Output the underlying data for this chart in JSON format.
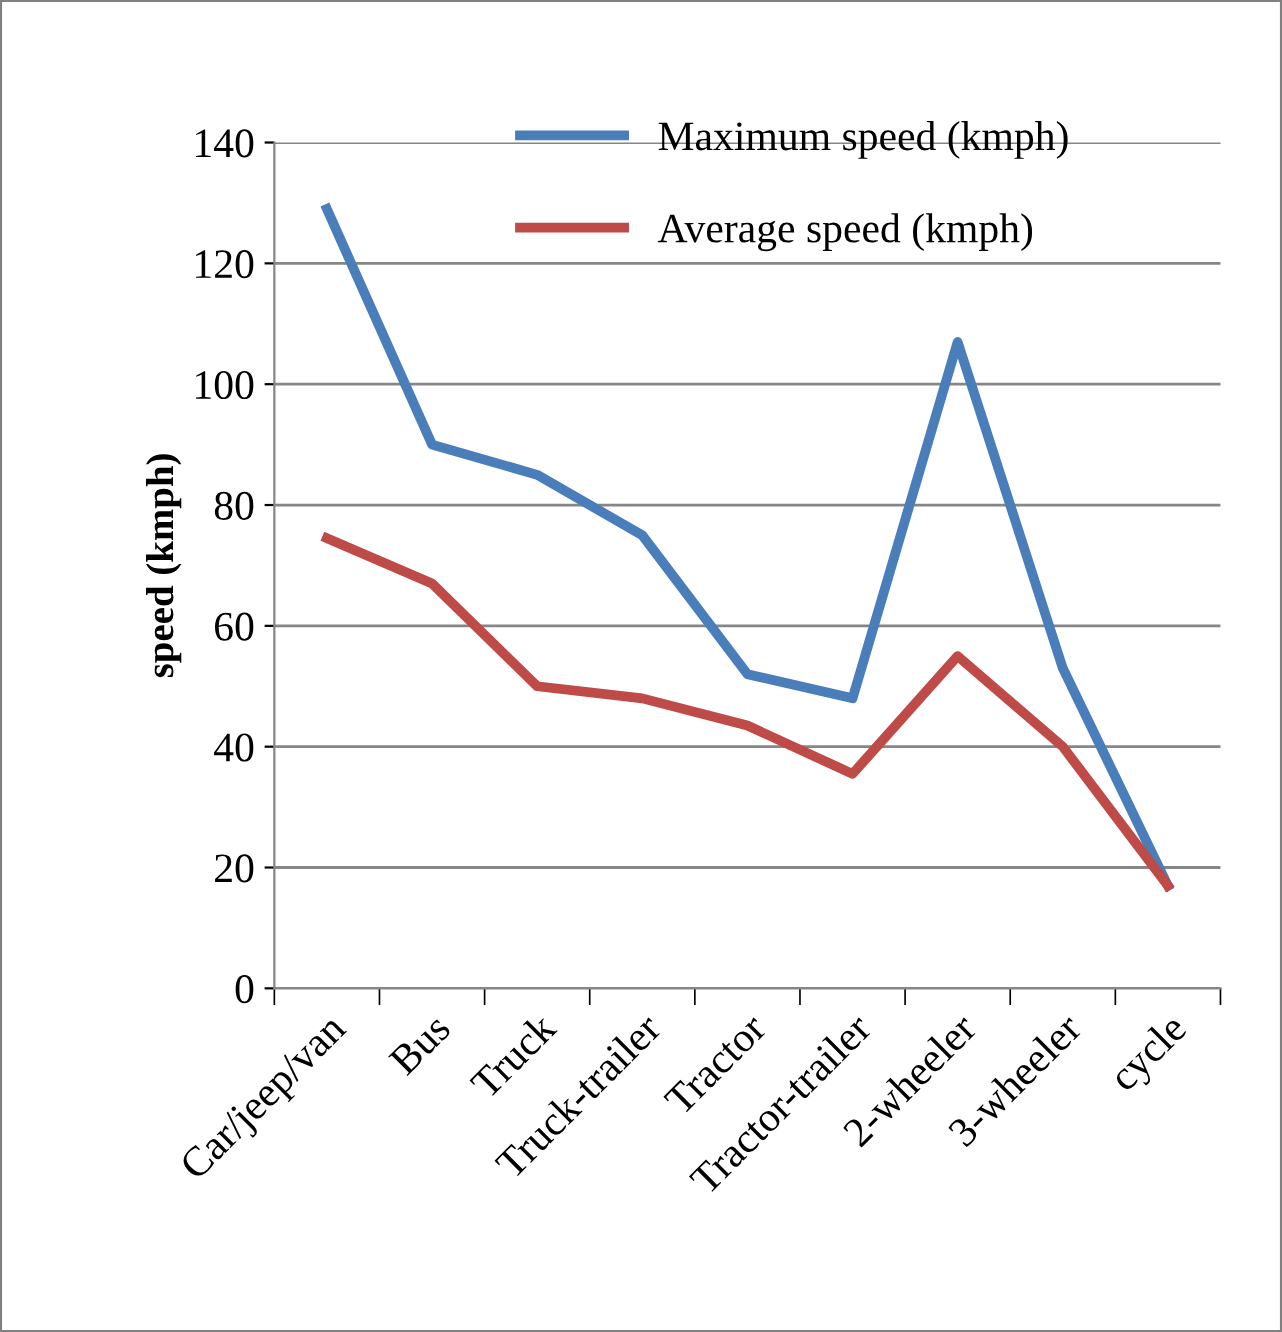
{
  "chart_data": {
    "type": "line",
    "ylabel": "speed (kmph)",
    "categories": [
      "Car/jeep/van",
      "Bus",
      "Truck",
      "Truck-trailer",
      "Tractor",
      "Tractor-trailer",
      "2-wheeler",
      "3-wheeler",
      "cycle"
    ],
    "series": [
      {
        "name": "Maximum speed (kmph)",
        "color": "#4a7ebb",
        "values": [
          129,
          90,
          85,
          75,
          52,
          48,
          107,
          53,
          17
        ]
      },
      {
        "name": "Average speed (kmph)",
        "color": "#be4b48",
        "values": [
          74.5,
          67,
          50,
          48,
          43.5,
          35.5,
          55,
          40,
          17
        ]
      }
    ],
    "ylim": [
      0,
      140
    ],
    "yticks": [
      0,
      20,
      40,
      60,
      80,
      100,
      120,
      140
    ],
    "grid": "y",
    "legend": "top",
    "marker": "none",
    "line_style": "solid"
  }
}
